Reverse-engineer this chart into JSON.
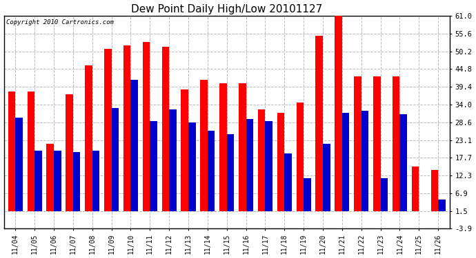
{
  "title": "Dew Point Daily High/Low 20101127",
  "copyright": "Copyright 2010 Cartronics.com",
  "dates": [
    "11/04",
    "11/05",
    "11/06",
    "11/07",
    "11/08",
    "11/09",
    "11/10",
    "11/11",
    "11/12",
    "11/13",
    "11/14",
    "11/15",
    "11/16",
    "11/17",
    "11/18",
    "11/19",
    "11/20",
    "11/21",
    "11/22",
    "11/23",
    "11/24",
    "11/25",
    "11/26"
  ],
  "highs": [
    38.0,
    38.0,
    22.0,
    37.0,
    46.0,
    51.0,
    52.0,
    53.0,
    51.5,
    38.5,
    41.5,
    40.5,
    40.5,
    32.5,
    31.5,
    34.5,
    55.0,
    63.0,
    42.5,
    42.5,
    42.5,
    15.0,
    14.0
  ],
  "lows": [
    30.0,
    20.0,
    20.0,
    19.5,
    20.0,
    33.0,
    41.5,
    29.0,
    32.5,
    28.5,
    26.0,
    25.0,
    29.5,
    29.0,
    19.0,
    11.5,
    22.0,
    31.5,
    32.0,
    11.5,
    31.0,
    1.5,
    5.0
  ],
  "high_color": "#ff0000",
  "low_color": "#0000cc",
  "bg_color": "#ffffff",
  "yticks": [
    -3.9,
    1.5,
    6.9,
    12.3,
    17.7,
    23.1,
    28.6,
    34.0,
    39.4,
    44.8,
    50.2,
    55.6,
    61.0
  ],
  "ylim": [
    -3.9,
    61.0
  ],
  "grid_color": "#bbbbbb",
  "title_fontsize": 11,
  "bar_width": 0.38,
  "fig_width": 6.9,
  "fig_height": 3.75,
  "dpi": 100
}
